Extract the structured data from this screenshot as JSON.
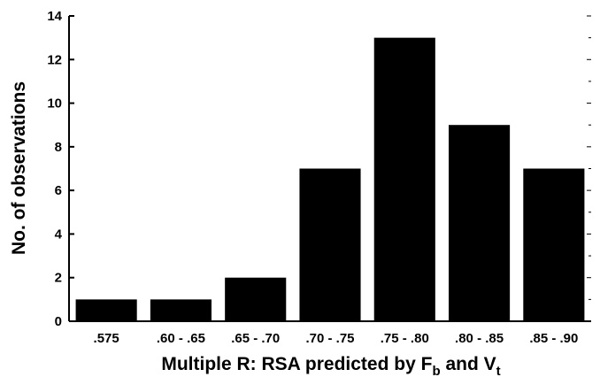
{
  "chart_data": {
    "type": "bar",
    "categories": [
      ".575",
      ".60 - .65",
      ".65 - .70",
      ".70 - .75",
      ".75 - .80",
      ".80 - .85",
      ".85 - .90"
    ],
    "values": [
      1,
      1,
      2,
      7,
      13,
      9,
      7
    ],
    "xlabel": "Multiple R: RSA predicted by F",
    "xlabel_sub1": "b",
    "xlabel_mid": " and V",
    "xlabel_sub2": "t",
    "ylabel": "No. of observations",
    "ylim": [
      0,
      14
    ],
    "yticks": [
      0,
      2,
      4,
      6,
      8,
      10,
      12,
      14
    ],
    "bar_color": "#000000",
    "grid": false
  }
}
